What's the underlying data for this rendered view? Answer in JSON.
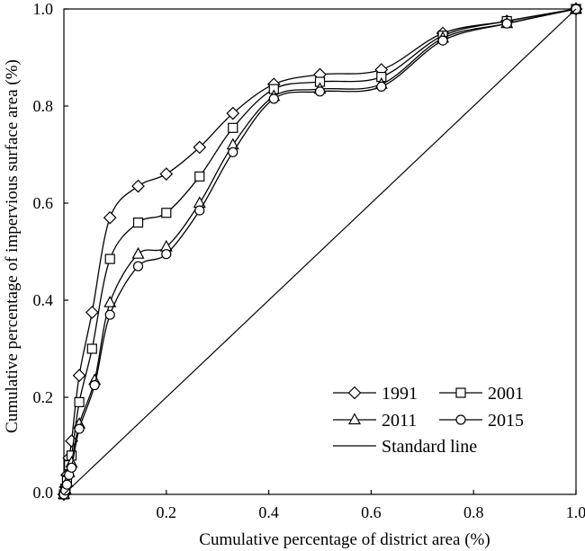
{
  "chart_data": {
    "type": "line",
    "xlabel": "Cumulative percentage of district area (%)",
    "ylabel": "Cumulative percentage of impervious surface area (%)",
    "xlim": [
      0,
      1
    ],
    "ylim": [
      0,
      1
    ],
    "x_ticks": [
      "0.2",
      "0.4",
      "0.6",
      "0.8",
      "1.0"
    ],
    "y_ticks": [
      "0.0",
      "0.2",
      "0.4",
      "0.6",
      "0.8",
      "1.0"
    ],
    "grid": false,
    "legend_position": "bottom-right",
    "series": [
      {
        "name": "1991",
        "marker": "diamond",
        "points": [
          [
            0.0,
            0.0
          ],
          [
            0.003,
            0.015
          ],
          [
            0.006,
            0.04
          ],
          [
            0.01,
            0.075
          ],
          [
            0.015,
            0.11
          ],
          [
            0.03,
            0.245
          ],
          [
            0.055,
            0.375
          ],
          [
            0.09,
            0.57
          ],
          [
            0.145,
            0.635
          ],
          [
            0.2,
            0.66
          ],
          [
            0.265,
            0.715
          ],
          [
            0.33,
            0.785
          ],
          [
            0.41,
            0.845
          ],
          [
            0.5,
            0.865
          ],
          [
            0.62,
            0.875
          ],
          [
            0.74,
            0.95
          ],
          [
            0.865,
            0.975
          ],
          [
            1.0,
            1.0
          ]
        ]
      },
      {
        "name": "2001",
        "marker": "square",
        "points": [
          [
            0.0,
            0.0
          ],
          [
            0.003,
            0.012
          ],
          [
            0.006,
            0.03
          ],
          [
            0.01,
            0.06
          ],
          [
            0.015,
            0.08
          ],
          [
            0.03,
            0.19
          ],
          [
            0.055,
            0.3
          ],
          [
            0.09,
            0.485
          ],
          [
            0.145,
            0.56
          ],
          [
            0.2,
            0.58
          ],
          [
            0.265,
            0.655
          ],
          [
            0.33,
            0.755
          ],
          [
            0.41,
            0.835
          ],
          [
            0.5,
            0.85
          ],
          [
            0.62,
            0.86
          ],
          [
            0.74,
            0.945
          ],
          [
            0.865,
            0.975
          ],
          [
            1.0,
            1.0
          ]
        ]
      },
      {
        "name": "2011",
        "marker": "triangle",
        "points": [
          [
            0.0,
            0.0
          ],
          [
            0.003,
            0.01
          ],
          [
            0.006,
            0.025
          ],
          [
            0.01,
            0.045
          ],
          [
            0.015,
            0.065
          ],
          [
            0.03,
            0.145
          ],
          [
            0.06,
            0.235
          ],
          [
            0.09,
            0.395
          ],
          [
            0.145,
            0.495
          ],
          [
            0.2,
            0.51
          ],
          [
            0.265,
            0.6
          ],
          [
            0.33,
            0.72
          ],
          [
            0.41,
            0.82
          ],
          [
            0.5,
            0.835
          ],
          [
            0.62,
            0.845
          ],
          [
            0.74,
            0.94
          ],
          [
            0.865,
            0.97
          ],
          [
            1.0,
            1.0
          ]
        ]
      },
      {
        "name": "2015",
        "marker": "circle",
        "points": [
          [
            0.0,
            0.0
          ],
          [
            0.003,
            0.008
          ],
          [
            0.006,
            0.02
          ],
          [
            0.01,
            0.04
          ],
          [
            0.015,
            0.055
          ],
          [
            0.03,
            0.135
          ],
          [
            0.06,
            0.225
          ],
          [
            0.09,
            0.37
          ],
          [
            0.145,
            0.47
          ],
          [
            0.2,
            0.495
          ],
          [
            0.265,
            0.585
          ],
          [
            0.33,
            0.705
          ],
          [
            0.41,
            0.815
          ],
          [
            0.5,
            0.83
          ],
          [
            0.62,
            0.84
          ],
          [
            0.74,
            0.935
          ],
          [
            0.865,
            0.97
          ],
          [
            1.0,
            1.0
          ]
        ]
      },
      {
        "name": "Standard line",
        "marker": "none",
        "points": [
          [
            0.0,
            0.0
          ],
          [
            1.0,
            1.0
          ]
        ]
      }
    ]
  }
}
